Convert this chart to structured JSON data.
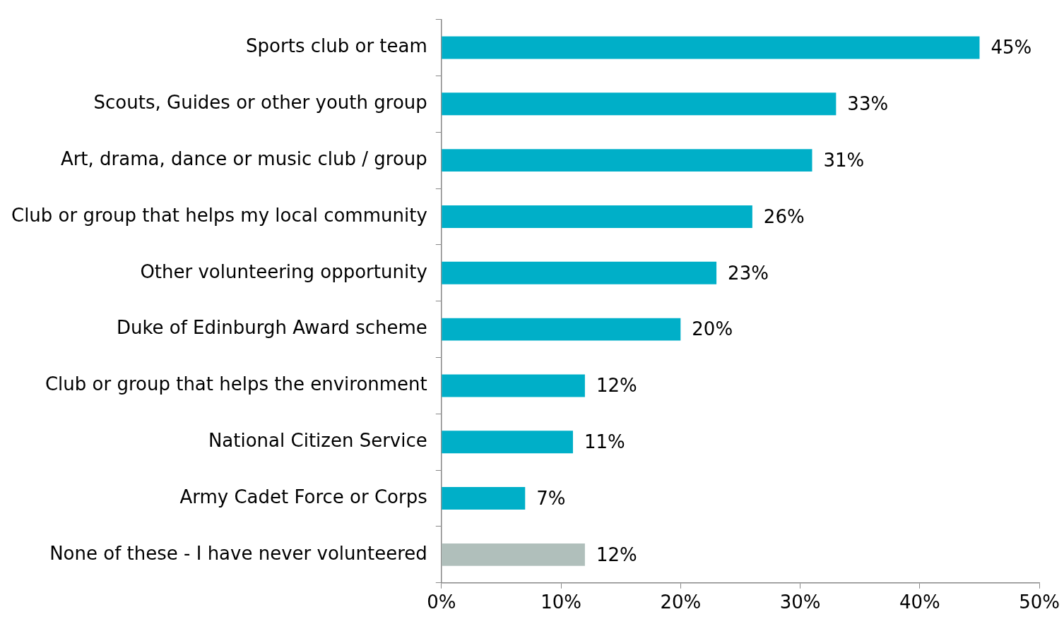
{
  "chart_data": {
    "type": "bar",
    "orientation": "horizontal",
    "categories": [
      "Sports club or team",
      "Scouts, Guides or other youth group",
      "Art, drama, dance or music club / group",
      "Club or group that helps my local community",
      "Other volunteering opportunity",
      "Duke of Edinburgh Award scheme",
      "Club or group that helps the environment",
      "National Citizen Service",
      "Army Cadet Force or Corps",
      "None of these - I have never volunteered"
    ],
    "values": [
      45,
      33,
      31,
      26,
      23,
      20,
      12,
      11,
      7,
      12
    ],
    "value_labels": [
      "45%",
      "33%",
      "31%",
      "26%",
      "23%",
      "20%",
      "12%",
      "11%",
      "7%",
      "12%"
    ],
    "colors": [
      "#00afc8",
      "#00afc8",
      "#00afc8",
      "#00afc8",
      "#00afc8",
      "#00afc8",
      "#00afc8",
      "#00afc8",
      "#00afc8",
      "#b0bfbb"
    ],
    "xlim": [
      0,
      50
    ],
    "xticks": [
      {
        "value": 0,
        "label": "0%"
      },
      {
        "value": 10,
        "label": "10%"
      },
      {
        "value": 20,
        "label": "20%"
      },
      {
        "value": 30,
        "label": "30%"
      },
      {
        "value": 40,
        "label": "40%"
      },
      {
        "value": 50,
        "label": "50%"
      }
    ],
    "grid": false,
    "legend": false
  }
}
